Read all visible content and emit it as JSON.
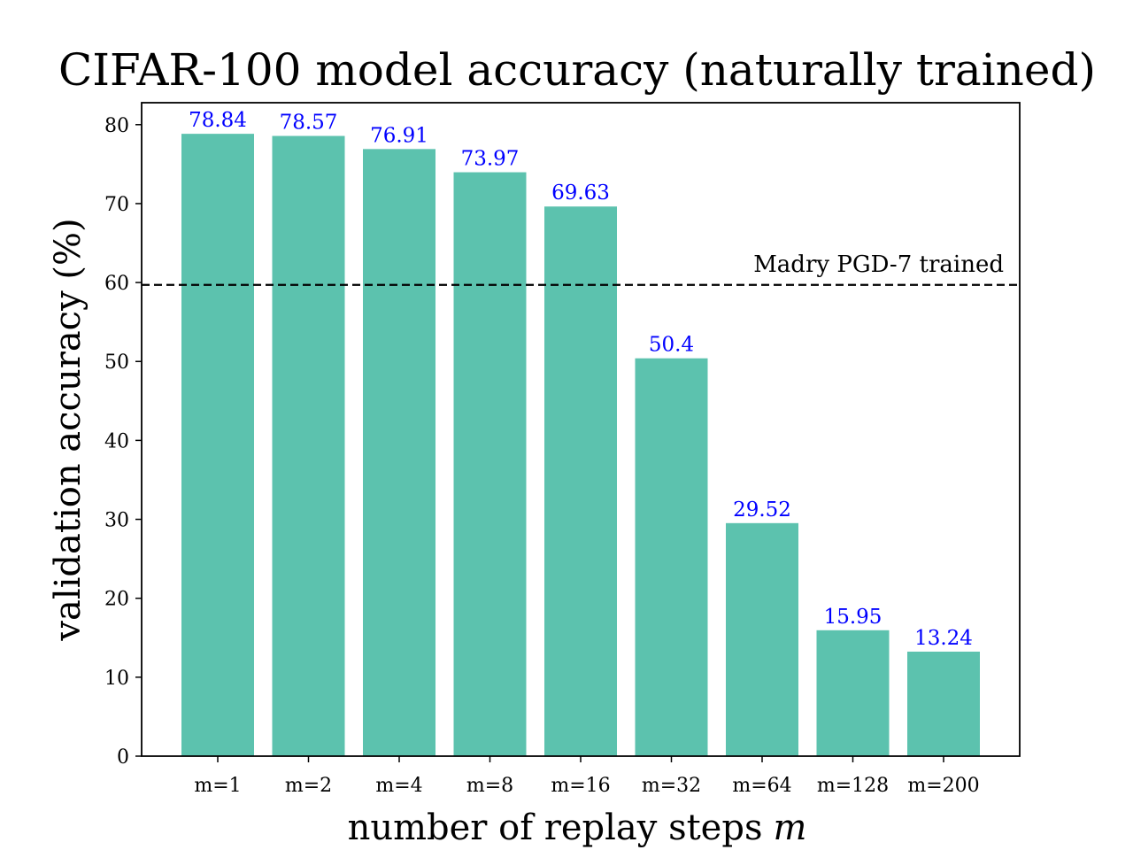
{
  "chart_data": {
    "type": "bar",
    "title": "CIFAR-100 model accuracy (naturally trained)",
    "xlabel": "number of replay steps",
    "xlabel_var": "m",
    "ylabel": "validation accuracy (%)",
    "categories": [
      "m=1",
      "m=2",
      "m=4",
      "m=8",
      "m=16",
      "m=32",
      "m=64",
      "m=128",
      "m=200"
    ],
    "values": [
      78.84,
      78.57,
      76.91,
      73.97,
      69.63,
      50.4,
      29.52,
      15.95,
      13.24
    ],
    "value_labels": [
      "78.84",
      "78.57",
      "76.91",
      "73.97",
      "69.63",
      "50.4",
      "29.52",
      "15.95",
      "13.24"
    ],
    "ylim": [
      0,
      82.78
    ],
    "yticks": [
      0,
      10,
      20,
      30,
      40,
      50,
      60,
      70,
      80
    ],
    "grid": false,
    "reference_line": {
      "value": 59.7,
      "label": "Madry PGD-7 trained",
      "style": "dashed"
    },
    "colors": {
      "bar": "#5cc2ae",
      "value_label": "#0000ff",
      "reference_line": "#000000",
      "axes": "#000000"
    }
  }
}
